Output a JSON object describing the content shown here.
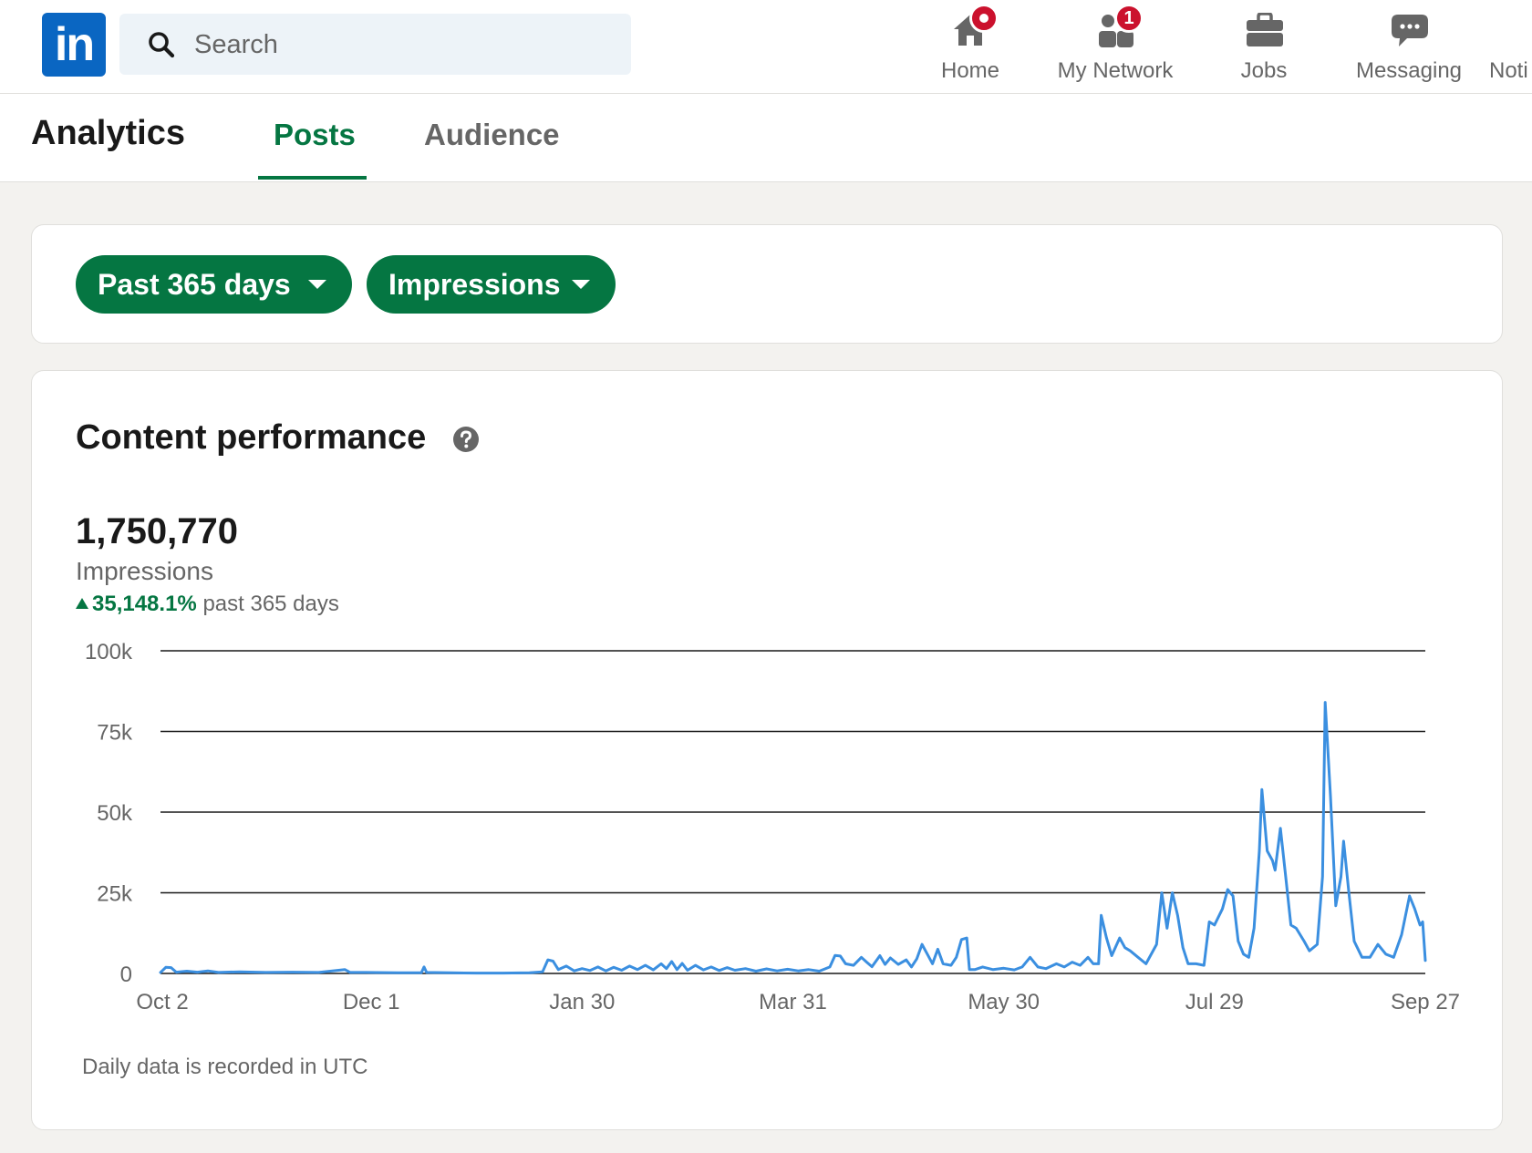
{
  "nav": {
    "logo_text": "in",
    "search_placeholder": "Search",
    "items": [
      {
        "label": "Home",
        "icon": "home-icon",
        "badge": ""
      },
      {
        "label": "My Network",
        "icon": "network-icon",
        "badge": "1"
      },
      {
        "label": "Jobs",
        "icon": "briefcase-icon",
        "badge": ""
      },
      {
        "label": "Messaging",
        "icon": "chat-icon",
        "badge": ""
      },
      {
        "label": "Noti",
        "icon": "",
        "badge": ""
      }
    ]
  },
  "analytics": {
    "title": "Analytics",
    "tabs": [
      "Posts",
      "Audience"
    ],
    "active_tab": "Posts"
  },
  "filters": {
    "range_label": "Past 365 days",
    "metric_label": "Impressions"
  },
  "performance": {
    "title": "Content performance",
    "total": "1,750,770",
    "metric": "Impressions",
    "change_pct": "35,148.1%",
    "change_period": "past 365 days",
    "footnote": "Daily data is recorded in UTC"
  },
  "colors": {
    "brand": "#0a66c2",
    "accent_green": "#057642",
    "badge_red": "#cb112d",
    "series_line": "#3b8fe0"
  },
  "chart_data": {
    "type": "line",
    "title": "",
    "xlabel": "",
    "ylabel": "",
    "ylim": [
      0,
      100000
    ],
    "y_ticks": [
      "100k",
      "75k",
      "50k",
      "25k",
      "0"
    ],
    "y_tick_values": [
      100000,
      75000,
      50000,
      25000,
      0
    ],
    "x_ticks": [
      "Oct 2",
      "Dec 1",
      "Jan 30",
      "Mar 31",
      "May 30",
      "Jul 29",
      "Sep 27"
    ],
    "grid": true,
    "legend": "none",
    "series": [
      {
        "values": [
          {
            "day": 0,
            "value": 300
          },
          {
            "day": 2,
            "value": 1900
          },
          {
            "day": 4,
            "value": 1800
          },
          {
            "day": 6,
            "value": 400
          },
          {
            "day": 10,
            "value": 700
          },
          {
            "day": 14,
            "value": 400
          },
          {
            "day": 18,
            "value": 800
          },
          {
            "day": 22,
            "value": 300
          },
          {
            "day": 30,
            "value": 500
          },
          {
            "day": 40,
            "value": 300
          },
          {
            "day": 50,
            "value": 400
          },
          {
            "day": 60,
            "value": 300
          },
          {
            "day": 70,
            "value": 1200
          },
          {
            "day": 72,
            "value": 300
          },
          {
            "day": 78,
            "value": 300
          },
          {
            "day": 90,
            "value": 200
          },
          {
            "day": 99,
            "value": 200
          },
          {
            "day": 100,
            "value": 2000
          },
          {
            "day": 101,
            "value": 300
          },
          {
            "day": 110,
            "value": 200
          },
          {
            "day": 120,
            "value": 100
          },
          {
            "day": 130,
            "value": 100
          },
          {
            "day": 140,
            "value": 200
          },
          {
            "day": 145,
            "value": 500
          },
          {
            "day": 147,
            "value": 4200
          },
          {
            "day": 149,
            "value": 3800
          },
          {
            "day": 151,
            "value": 1200
          },
          {
            "day": 154,
            "value": 2300
          },
          {
            "day": 157,
            "value": 800
          },
          {
            "day": 160,
            "value": 1500
          },
          {
            "day": 163,
            "value": 900
          },
          {
            "day": 166,
            "value": 2000
          },
          {
            "day": 169,
            "value": 800
          },
          {
            "day": 172,
            "value": 1900
          },
          {
            "day": 175,
            "value": 1000
          },
          {
            "day": 178,
            "value": 2300
          },
          {
            "day": 181,
            "value": 1200
          },
          {
            "day": 184,
            "value": 2500
          },
          {
            "day": 187,
            "value": 1100
          },
          {
            "day": 190,
            "value": 3000
          },
          {
            "day": 192,
            "value": 1500
          },
          {
            "day": 194,
            "value": 3700
          },
          {
            "day": 196,
            "value": 1200
          },
          {
            "day": 198,
            "value": 3100
          },
          {
            "day": 200,
            "value": 1000
          },
          {
            "day": 203,
            "value": 2500
          },
          {
            "day": 206,
            "value": 1100
          },
          {
            "day": 209,
            "value": 2000
          },
          {
            "day": 212,
            "value": 900
          },
          {
            "day": 215,
            "value": 1800
          },
          {
            "day": 218,
            "value": 1000
          },
          {
            "day": 222,
            "value": 1500
          },
          {
            "day": 226,
            "value": 700
          },
          {
            "day": 230,
            "value": 1400
          },
          {
            "day": 234,
            "value": 800
          },
          {
            "day": 238,
            "value": 1300
          },
          {
            "day": 242,
            "value": 800
          },
          {
            "day": 246,
            "value": 1200
          },
          {
            "day": 250,
            "value": 700
          },
          {
            "day": 254,
            "value": 2000
          },
          {
            "day": 256,
            "value": 5600
          },
          {
            "day": 258,
            "value": 5400
          },
          {
            "day": 260,
            "value": 3000
          },
          {
            "day": 263,
            "value": 2500
          },
          {
            "day": 266,
            "value": 5000
          },
          {
            "day": 268,
            "value": 3500
          },
          {
            "day": 270,
            "value": 2100
          },
          {
            "day": 273,
            "value": 5500
          },
          {
            "day": 275,
            "value": 2800
          },
          {
            "day": 277,
            "value": 4800
          },
          {
            "day": 280,
            "value": 2800
          },
          {
            "day": 283,
            "value": 4200
          },
          {
            "day": 285,
            "value": 2000
          },
          {
            "day": 287,
            "value": 4500
          },
          {
            "day": 289,
            "value": 9000
          },
          {
            "day": 291,
            "value": 6000
          },
          {
            "day": 293,
            "value": 3000
          },
          {
            "day": 295,
            "value": 7500
          },
          {
            "day": 297,
            "value": 3000
          },
          {
            "day": 300,
            "value": 2500
          },
          {
            "day": 302,
            "value": 5000
          },
          {
            "day": 304,
            "value": 10500
          },
          {
            "day": 306,
            "value": 11000
          },
          {
            "day": 307,
            "value": 1200
          },
          {
            "day": 309,
            "value": 1200
          },
          {
            "day": 312,
            "value": 2000
          },
          {
            "day": 316,
            "value": 1200
          },
          {
            "day": 320,
            "value": 1600
          },
          {
            "day": 324,
            "value": 1100
          },
          {
            "day": 327,
            "value": 2000
          },
          {
            "day": 330,
            "value": 5000
          },
          {
            "day": 333,
            "value": 2000
          },
          {
            "day": 336,
            "value": 1500
          },
          {
            "day": 340,
            "value": 3000
          },
          {
            "day": 343,
            "value": 2000
          },
          {
            "day": 346,
            "value": 3500
          },
          {
            "day": 349,
            "value": 2500
          },
          {
            "day": 352,
            "value": 5000
          },
          {
            "day": 354,
            "value": 3000
          },
          {
            "day": 356,
            "value": 3000
          },
          {
            "day": 357,
            "value": 18000
          },
          {
            "day": 359,
            "value": 11000
          },
          {
            "day": 361,
            "value": 5500
          },
          {
            "day": 364,
            "value": 11000
          },
          {
            "day": 366,
            "value": 8000
          },
          {
            "day": 368,
            "value": 7000
          },
          {
            "day": 371,
            "value": 5000
          },
          {
            "day": 374,
            "value": 3000
          },
          {
            "day": 378,
            "value": 9000
          },
          {
            "day": 380,
            "value": 25000
          },
          {
            "day": 382,
            "value": 14000
          },
          {
            "day": 384,
            "value": 25000
          },
          {
            "day": 386,
            "value": 18000
          },
          {
            "day": 388,
            "value": 8000
          },
          {
            "day": 390,
            "value": 3000
          },
          {
            "day": 393,
            "value": 3000
          },
          {
            "day": 396,
            "value": 2500
          },
          {
            "day": 398,
            "value": 16000
          },
          {
            "day": 400,
            "value": 15000
          },
          {
            "day": 403,
            "value": 20000
          },
          {
            "day": 405,
            "value": 26000
          },
          {
            "day": 407,
            "value": 24000
          },
          {
            "day": 409,
            "value": 10000
          },
          {
            "day": 411,
            "value": 6000
          },
          {
            "day": 413,
            "value": 5000
          },
          {
            "day": 415,
            "value": 14000
          },
          {
            "day": 417,
            "value": 38000
          },
          {
            "day": 418,
            "value": 57000
          },
          {
            "day": 420,
            "value": 38000
          },
          {
            "day": 422,
            "value": 35000
          },
          {
            "day": 423,
            "value": 32000
          },
          {
            "day": 425,
            "value": 45000
          },
          {
            "day": 427,
            "value": 30000
          },
          {
            "day": 429,
            "value": 15000
          },
          {
            "day": 431,
            "value": 14000
          },
          {
            "day": 434,
            "value": 10000
          },
          {
            "day": 436,
            "value": 7000
          },
          {
            "day": 439,
            "value": 9000
          },
          {
            "day": 441,
            "value": 30000
          },
          {
            "day": 442,
            "value": 84000
          },
          {
            "day": 444,
            "value": 55000
          },
          {
            "day": 446,
            "value": 21000
          },
          {
            "day": 448,
            "value": 30000
          },
          {
            "day": 449,
            "value": 41000
          },
          {
            "day": 451,
            "value": 25000
          },
          {
            "day": 453,
            "value": 10000
          },
          {
            "day": 456,
            "value": 5000
          },
          {
            "day": 459,
            "value": 5000
          },
          {
            "day": 462,
            "value": 9000
          },
          {
            "day": 465,
            "value": 6000
          },
          {
            "day": 468,
            "value": 5000
          },
          {
            "day": 471,
            "value": 12000
          },
          {
            "day": 474,
            "value": 24000
          },
          {
            "day": 476,
            "value": 20000
          },
          {
            "day": 478,
            "value": 15000
          },
          {
            "day": 479,
            "value": 16000
          },
          {
            "day": 480,
            "value": 4000
          }
        ]
      }
    ]
  }
}
